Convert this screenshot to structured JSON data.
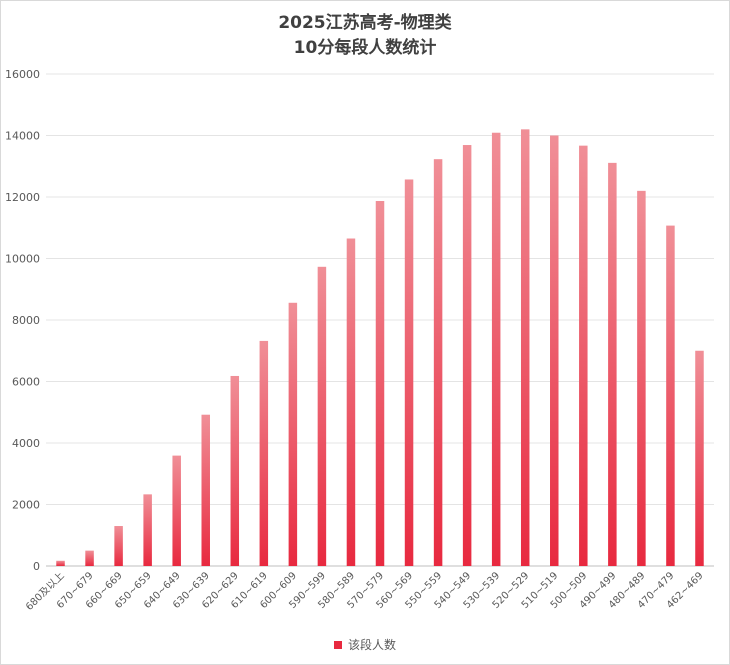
{
  "chart_data": {
    "type": "bar",
    "title_line1": "2025江苏高考-物理类",
    "title_line2": "10分每段人数统计",
    "xlabel": "",
    "ylabel": "",
    "ylim": [
      0,
      16000
    ],
    "yticks": [
      0,
      2000,
      4000,
      6000,
      8000,
      10000,
      12000,
      14000,
      16000
    ],
    "grid": true,
    "legend_position": "bottom",
    "bar_color": "#e8293f",
    "categories": [
      "680及以上",
      "670~679",
      "660~669",
      "650~659",
      "640~649",
      "630~639",
      "620~629",
      "610~619",
      "600~609",
      "590~599",
      "580~589",
      "570~579",
      "560~569",
      "550~559",
      "540~549",
      "530~539",
      "520~529",
      "510~519",
      "500~509",
      "490~499",
      "480~489",
      "470~479",
      "462~469"
    ],
    "series": [
      {
        "name": "该段人数",
        "values": [
          170,
          500,
          1300,
          2330,
          3590,
          4920,
          6180,
          7320,
          8560,
          9730,
          10650,
          11870,
          12570,
          13230,
          13690,
          14090,
          14200,
          14000,
          13670,
          13110,
          12200,
          11070,
          7000
        ]
      }
    ]
  }
}
